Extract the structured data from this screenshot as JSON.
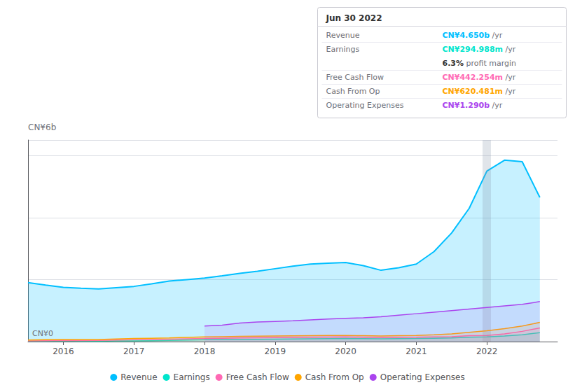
{
  "chart_data": {
    "type": "line",
    "ylabel": "CN¥6b",
    "annotations": [
      "CN¥0"
    ],
    "x": [
      2015.5,
      2015.75,
      2016.0,
      2016.25,
      2016.5,
      2016.75,
      2017.0,
      2017.25,
      2017.5,
      2017.75,
      2018.0,
      2018.25,
      2018.5,
      2018.75,
      2019.0,
      2019.25,
      2019.5,
      2019.75,
      2020.0,
      2020.25,
      2020.5,
      2020.75,
      2021.0,
      2021.25,
      2021.5,
      2021.75,
      2022.0,
      2022.25,
      2022.5,
      2022.75
    ],
    "series": [
      {
        "name": "Revenue",
        "color": "#00bfff",
        "values": [
          1.9,
          1.82,
          1.75,
          1.72,
          1.7,
          1.74,
          1.78,
          1.86,
          1.95,
          2.0,
          2.05,
          2.12,
          2.2,
          2.27,
          2.35,
          2.43,
          2.5,
          2.53,
          2.55,
          2.45,
          2.3,
          2.38,
          2.5,
          2.9,
          3.5,
          4.3,
          5.5,
          5.85,
          5.8,
          4.65
        ]
      },
      {
        "name": "Earnings",
        "color": "#00e5cc",
        "values": [
          0.01,
          0.01,
          0.02,
          0.01,
          0.01,
          0.02,
          0.02,
          0.03,
          0.04,
          0.05,
          0.06,
          0.065,
          0.07,
          0.075,
          0.08,
          0.085,
          0.09,
          0.095,
          0.1,
          0.095,
          0.09,
          0.095,
          0.1,
          0.11,
          0.12,
          0.14,
          0.15,
          0.18,
          0.22,
          0.29
        ]
      },
      {
        "name": "Free Cash Flow",
        "color": "#ff69b4",
        "values": [
          0.02,
          0.03,
          0.04,
          0.035,
          0.04,
          0.05,
          0.06,
          0.07,
          0.08,
          0.09,
          0.1,
          0.11,
          0.12,
          0.125,
          0.13,
          0.135,
          0.14,
          0.145,
          0.15,
          0.14,
          0.13,
          0.135,
          0.14,
          0.155,
          0.16,
          0.19,
          0.2,
          0.25,
          0.33,
          0.44
        ]
      },
      {
        "name": "Cash From Op",
        "color": "#ffa500",
        "values": [
          0.05,
          0.06,
          0.07,
          0.065,
          0.07,
          0.085,
          0.1,
          0.11,
          0.12,
          0.135,
          0.15,
          0.16,
          0.17,
          0.175,
          0.18,
          0.185,
          0.19,
          0.195,
          0.2,
          0.19,
          0.18,
          0.19,
          0.2,
          0.22,
          0.25,
          0.3,
          0.35,
          0.42,
          0.5,
          0.62
        ]
      },
      {
        "name": "Operating Expenses",
        "color": "#aa44ee",
        "values": [
          null,
          null,
          null,
          null,
          null,
          null,
          null,
          null,
          null,
          null,
          0.5,
          0.53,
          0.6,
          0.63,
          0.65,
          0.67,
          0.7,
          0.73,
          0.75,
          0.77,
          0.8,
          0.85,
          0.9,
          0.95,
          1.0,
          1.05,
          1.1,
          1.15,
          1.2,
          1.29
        ]
      }
    ],
    "xlim": [
      2015.5,
      2023.0
    ],
    "xticks": [
      2016,
      2017,
      2018,
      2019,
      2020,
      2021,
      2022
    ],
    "ylim": [
      0,
      6.5
    ],
    "yticks": [
      2,
      4,
      6
    ],
    "grid": true,
    "tick_labels": "x",
    "legend": "bottom",
    "highlight_x": 2022.0,
    "info_box": {
      "date": "Jun 30 2022",
      "rows": [
        {
          "label": "Revenue",
          "value": "CN¥4.650b",
          "suffix": " /yr",
          "color": "#00bfff"
        },
        {
          "label": "Earnings",
          "value": "CN¥294.988m",
          "suffix": " /yr",
          "color": "#00e5cc"
        },
        {
          "value": "6.3%",
          "suffix": " profit margin"
        },
        {
          "label": "Free Cash Flow",
          "value": "CN¥442.254m",
          "suffix": " /yr",
          "color": "#ff69b4"
        },
        {
          "label": "Cash From Op",
          "value": "CN¥620.481m",
          "suffix": " /yr",
          "color": "#ffa500"
        },
        {
          "label": "Operating Expenses",
          "value": "CN¥1.290b",
          "suffix": " /yr",
          "color": "#aa44ee"
        }
      ]
    }
  }
}
